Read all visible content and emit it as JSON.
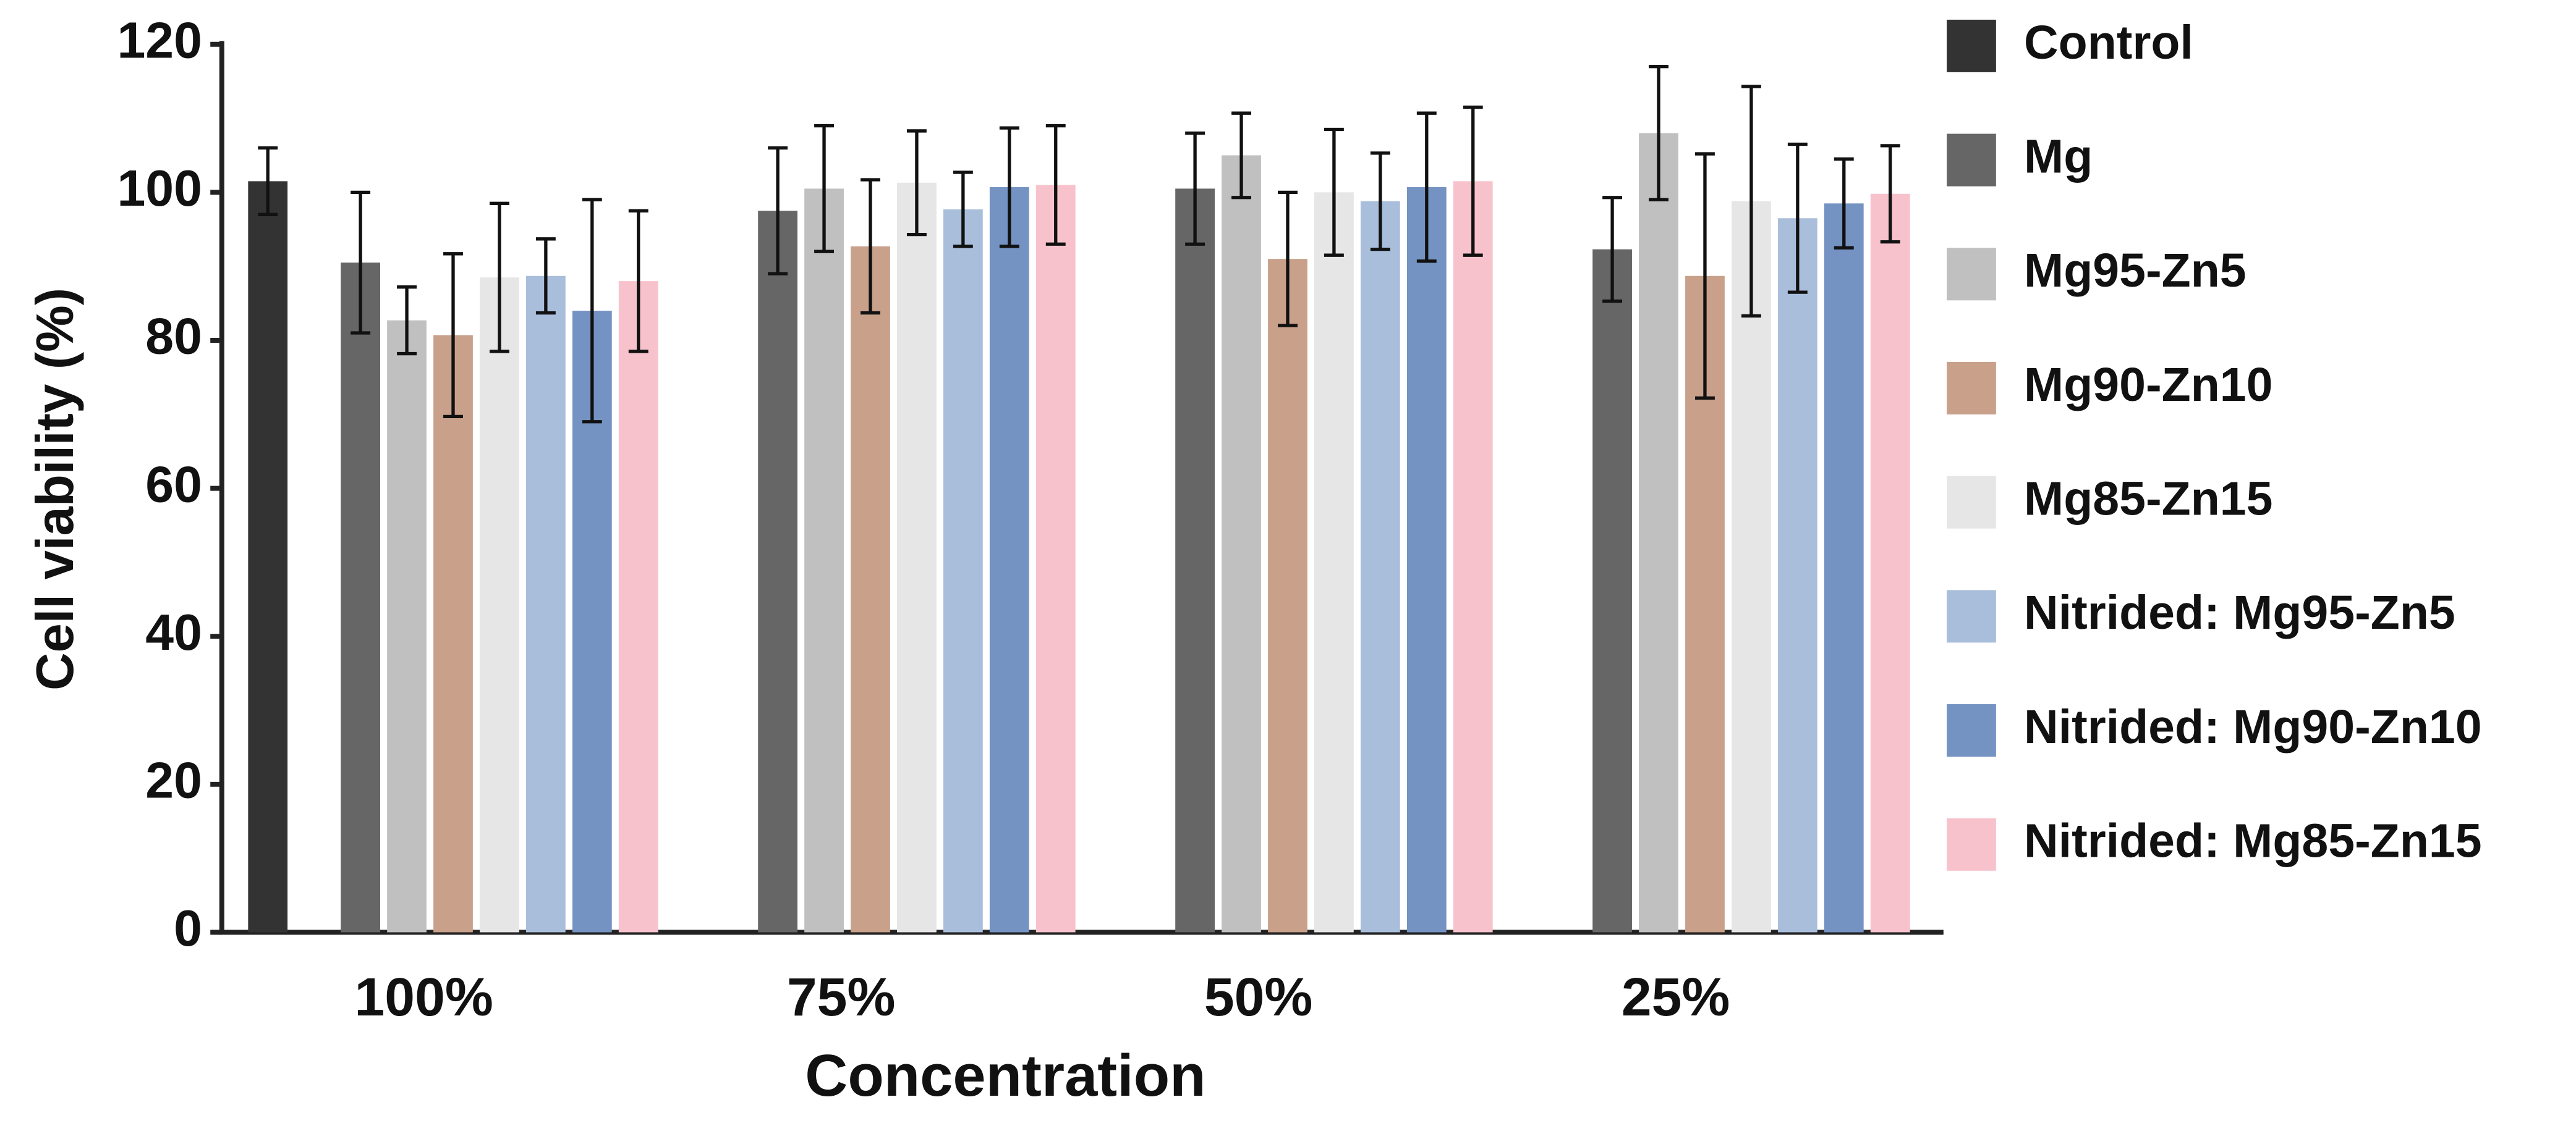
{
  "chart_data": {
    "type": "bar",
    "xlabel": "Concentration",
    "ylabel": "Cell viability (%)",
    "categories": [
      "100%",
      "75%",
      "50%",
      "25%"
    ],
    "ylim": [
      0,
      120
    ],
    "yticks": [
      0,
      20,
      40,
      60,
      80,
      100,
      120
    ],
    "legend": "right",
    "series": [
      {
        "name": "Control",
        "color": "#333333",
        "values": [
          101.5,
          null,
          null,
          null
        ],
        "errors": [
          4.5,
          null,
          null,
          null
        ]
      },
      {
        "name": "Mg",
        "color": "#666666",
        "values": [
          90.5,
          97.5,
          100.5,
          92.3
        ],
        "errors": [
          9.5,
          8.5,
          7.5,
          7
        ]
      },
      {
        "name": "Mg95-Zn5",
        "color": "#c0c0c0",
        "values": [
          82.7,
          100.5,
          105,
          108
        ],
        "errors": [
          4.5,
          8.5,
          5.7,
          9
        ]
      },
      {
        "name": "Mg90-Zn10",
        "color": "#c9a08a",
        "values": [
          80.7,
          92.7,
          91,
          88.7
        ],
        "errors": [
          11,
          9,
          9,
          16.5
        ]
      },
      {
        "name": "Mg85-Zn15",
        "color": "#e6e6e6",
        "values": [
          88.5,
          101.3,
          100,
          98.8
        ],
        "errors": [
          10,
          7,
          8.5,
          15.5
        ]
      },
      {
        "name": "Nitrided: Mg95-Zn5",
        "color": "#a9bedb",
        "values": [
          88.7,
          97.7,
          98.8,
          96.5
        ],
        "errors": [
          5,
          5,
          6.5,
          10
        ]
      },
      {
        "name": "Nitrided: Mg90-Zn10",
        "color": "#7593c2",
        "values": [
          84,
          100.7,
          100.7,
          98.5
        ],
        "errors": [
          15,
          8,
          10,
          6
        ]
      },
      {
        "name": "Nitrided: Mg85-Zn15",
        "color": "#f7c2cc",
        "values": [
          88,
          101,
          101.5,
          99.8
        ],
        "errors": [
          9.5,
          8,
          10,
          6.5
        ]
      }
    ]
  }
}
